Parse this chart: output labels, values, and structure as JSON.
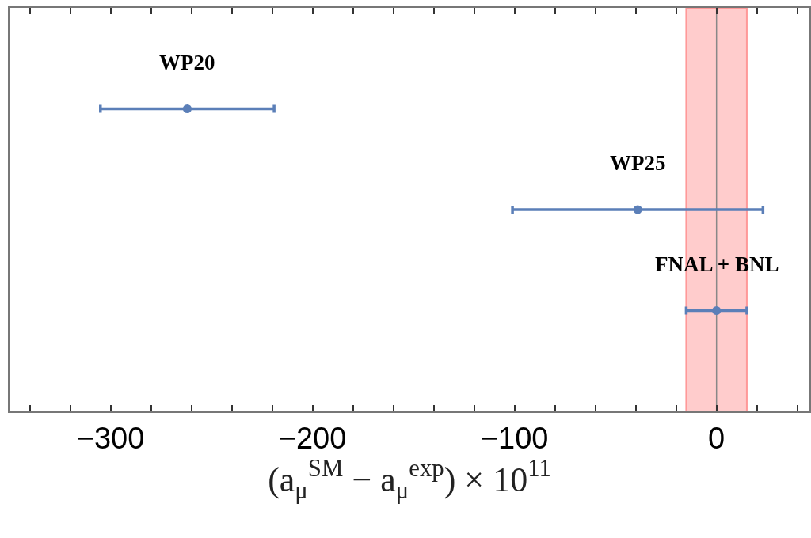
{
  "chart_data": {
    "type": "scatter",
    "orientation": "horizontal",
    "xlabel": "(a$_{μ}$$^{SM}$ − a$_{μ}$$^{exp}$) × 10$^{11}$",
    "categories": [
      null,
      null,
      null
    ],
    "series": [
      {
        "name": "WP20",
        "color": "#5b7fb8",
        "values": [
          -262,
          null,
          null
        ],
        "errors": [
          43,
          null,
          null
        ]
      },
      {
        "name": "WP25",
        "color": "#5b7fb8",
        "values": [
          null,
          -39,
          null
        ],
        "errors": [
          null,
          62,
          null
        ]
      },
      {
        "name": "FNAL + BNL",
        "color": "#5b7fb8",
        "values": [
          null,
          null,
          0
        ],
        "errors": [
          null,
          null,
          15
        ]
      }
    ],
    "marker": "circle",
    "xlim": [
      -350,
      46
    ],
    "xticks": [
      {
        "value": -340,
        "label": null
      },
      {
        "value": -320,
        "label": null
      },
      {
        "value": -300,
        "label": "−300"
      },
      {
        "value": -280,
        "label": null
      },
      {
        "value": -260,
        "label": null
      },
      {
        "value": -240,
        "label": null
      },
      {
        "value": -220,
        "label": null
      },
      {
        "value": -200,
        "label": "−200"
      },
      {
        "value": -180,
        "label": null
      },
      {
        "value": -160,
        "label": null
      },
      {
        "value": -140,
        "label": null
      },
      {
        "value": -120,
        "label": null
      },
      {
        "value": -100,
        "label": "−100"
      },
      {
        "value": -80,
        "label": null
      },
      {
        "value": -60,
        "label": null
      },
      {
        "value": -40,
        "label": null
      },
      {
        "value": -20,
        "label": null
      },
      0,
      {
        "value": 20,
        "label": null
      },
      {
        "value": 40,
        "label": null
      }
    ],
    "tick_labels": "x",
    "grid": false,
    "legend": false,
    "ref_lines": [
      {
        "axis": "x",
        "value": 0,
        "color": "#888888"
      }
    ],
    "bands": [
      {
        "axis": "x",
        "from": -15,
        "to": 15,
        "color": "#ffcccc"
      }
    ]
  }
}
